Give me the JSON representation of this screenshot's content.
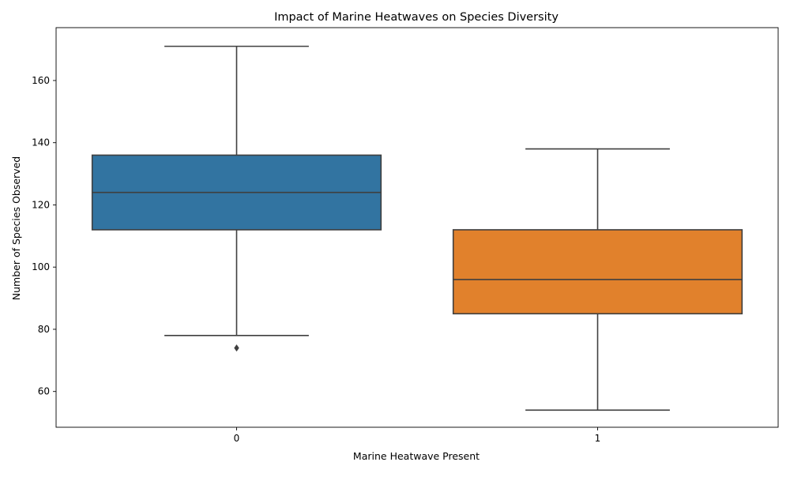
{
  "chart_data": {
    "type": "box",
    "title": "Impact of Marine Heatwaves on Species Diversity",
    "xlabel": "Marine Heatwave Present",
    "ylabel": "Number of Species Observed",
    "categories": [
      "0",
      "1"
    ],
    "ylim": [
      48.5,
      177
    ],
    "yticks": [
      60,
      80,
      100,
      120,
      140,
      160
    ],
    "grid": false,
    "legend": "none",
    "boxes": [
      {
        "category": "0",
        "whisker_low": 78,
        "q1": 112,
        "median": 124,
        "q3": 136,
        "whisker_high": 171,
        "outliers": [
          74
        ],
        "color": "#3274a1"
      },
      {
        "category": "1",
        "whisker_low": 54,
        "q1": 85,
        "median": 96,
        "q3": 112,
        "whisker_high": 138,
        "outliers": [],
        "color": "#e1812c"
      }
    ],
    "line_color": "#3f3f3f"
  }
}
